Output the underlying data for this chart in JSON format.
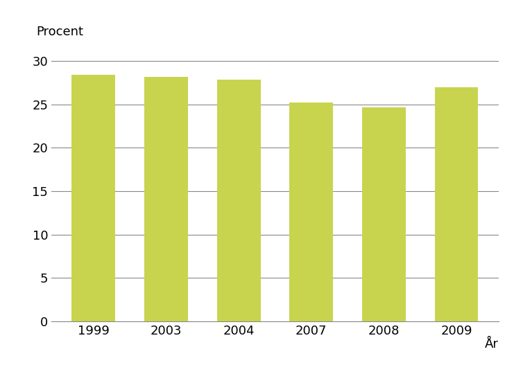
{
  "categories": [
    "1999",
    "2003",
    "2004",
    "2007",
    "2008",
    "2009"
  ],
  "values": [
    28.4,
    28.2,
    27.9,
    25.2,
    24.7,
    27.0
  ],
  "bar_color": "#c8d44e",
  "bar_edgecolor": "none",
  "ylabel": "Procent",
  "xlabel": "År",
  "ylim": [
    0,
    32
  ],
  "yticks": [
    0,
    5,
    10,
    15,
    20,
    25,
    30
  ],
  "grid_color": "#888888",
  "background_color": "#ffffff",
  "label_fontsize": 13,
  "tick_fontsize": 13,
  "bar_width": 0.6
}
